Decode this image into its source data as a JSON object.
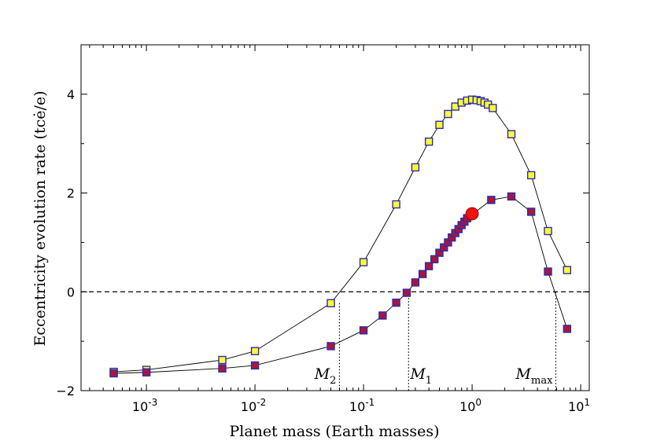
{
  "chart_data": {
    "type": "scatter",
    "xscale": "log",
    "xlim": [
      0.00025,
      12
    ],
    "ylim": [
      -2,
      5
    ],
    "xlabel": "Planet mass (Earth masses)",
    "ylabel": "Eccentricity evolution rate (tcė/e)",
    "x_ticks": [
      {
        "value": 0.001,
        "base": "10",
        "exp": "-3"
      },
      {
        "value": 0.01,
        "base": "10",
        "exp": "-2"
      },
      {
        "value": 0.1,
        "base": "10",
        "exp": "-1"
      },
      {
        "value": 1,
        "base": "10",
        "exp": "0"
      },
      {
        "value": 10,
        "base": "10",
        "exp": "1"
      }
    ],
    "y_ticks": [
      {
        "value": -2,
        "label": "−2"
      },
      {
        "value": 0,
        "label": "0"
      },
      {
        "value": 2,
        "label": "2"
      },
      {
        "value": 4,
        "label": "4"
      }
    ],
    "zero_line": {
      "y": 0,
      "style": "dashed"
    },
    "series": [
      {
        "marker": "square",
        "fill": "#ffff33",
        "edge": "#2b2bb0",
        "points": [
          [
            0.0005,
            -1.62
          ],
          [
            0.001,
            -1.58
          ],
          [
            0.005,
            -1.38
          ],
          [
            0.01,
            -1.2
          ],
          [
            0.05,
            -0.23
          ],
          [
            0.1,
            0.6
          ],
          [
            0.2,
            1.77
          ],
          [
            0.3,
            2.52
          ],
          [
            0.4,
            3.04
          ],
          [
            0.5,
            3.38
          ],
          [
            0.6,
            3.6
          ],
          [
            0.7,
            3.75
          ],
          [
            0.8,
            3.83
          ],
          [
            0.9,
            3.87
          ],
          [
            1.0,
            3.89
          ],
          [
            1.1,
            3.88
          ],
          [
            1.2,
            3.86
          ],
          [
            1.3,
            3.83
          ],
          [
            1.4,
            3.79
          ],
          [
            1.55,
            3.72
          ],
          [
            2.3,
            3.19
          ],
          [
            3.5,
            2.36
          ],
          [
            5.0,
            1.23
          ],
          [
            7.5,
            0.44
          ]
        ]
      },
      {
        "marker": "square",
        "fill": "#a8163b",
        "edge": "#2b2bb0",
        "points": [
          [
            0.0005,
            -1.65
          ],
          [
            0.001,
            -1.63
          ],
          [
            0.005,
            -1.55
          ],
          [
            0.01,
            -1.49
          ],
          [
            0.05,
            -1.1
          ],
          [
            0.1,
            -0.78
          ],
          [
            0.15,
            -0.48
          ],
          [
            0.2,
            -0.22
          ],
          [
            0.25,
            -0.02
          ],
          [
            0.3,
            0.19
          ],
          [
            0.35,
            0.36
          ],
          [
            0.4,
            0.52
          ],
          [
            0.45,
            0.66
          ],
          [
            0.5,
            0.79
          ],
          [
            0.55,
            0.9
          ],
          [
            0.6,
            1.0
          ],
          [
            0.65,
            1.1
          ],
          [
            0.7,
            1.19
          ],
          [
            0.75,
            1.27
          ],
          [
            0.8,
            1.35
          ],
          [
            0.85,
            1.42
          ],
          [
            0.9,
            1.49
          ],
          [
            1.5,
            1.86
          ],
          [
            2.3,
            1.93
          ],
          [
            3.5,
            1.62
          ],
          [
            5.0,
            0.41
          ],
          [
            7.5,
            -0.75
          ]
        ]
      }
    ],
    "highlight": {
      "x": 1.0,
      "y": 1.58,
      "marker": "circle",
      "color": "#ee1111"
    },
    "vlines": [
      {
        "x": 0.06,
        "y_top": -0.23,
        "label": "M",
        "sub": "2"
      },
      {
        "x": 0.26,
        "y_top": 0.0,
        "label": "M",
        "sub": "1"
      },
      {
        "x": 5.9,
        "y_top": 0.0,
        "label": "M",
        "sub": "max"
      }
    ],
    "grid": false
  }
}
